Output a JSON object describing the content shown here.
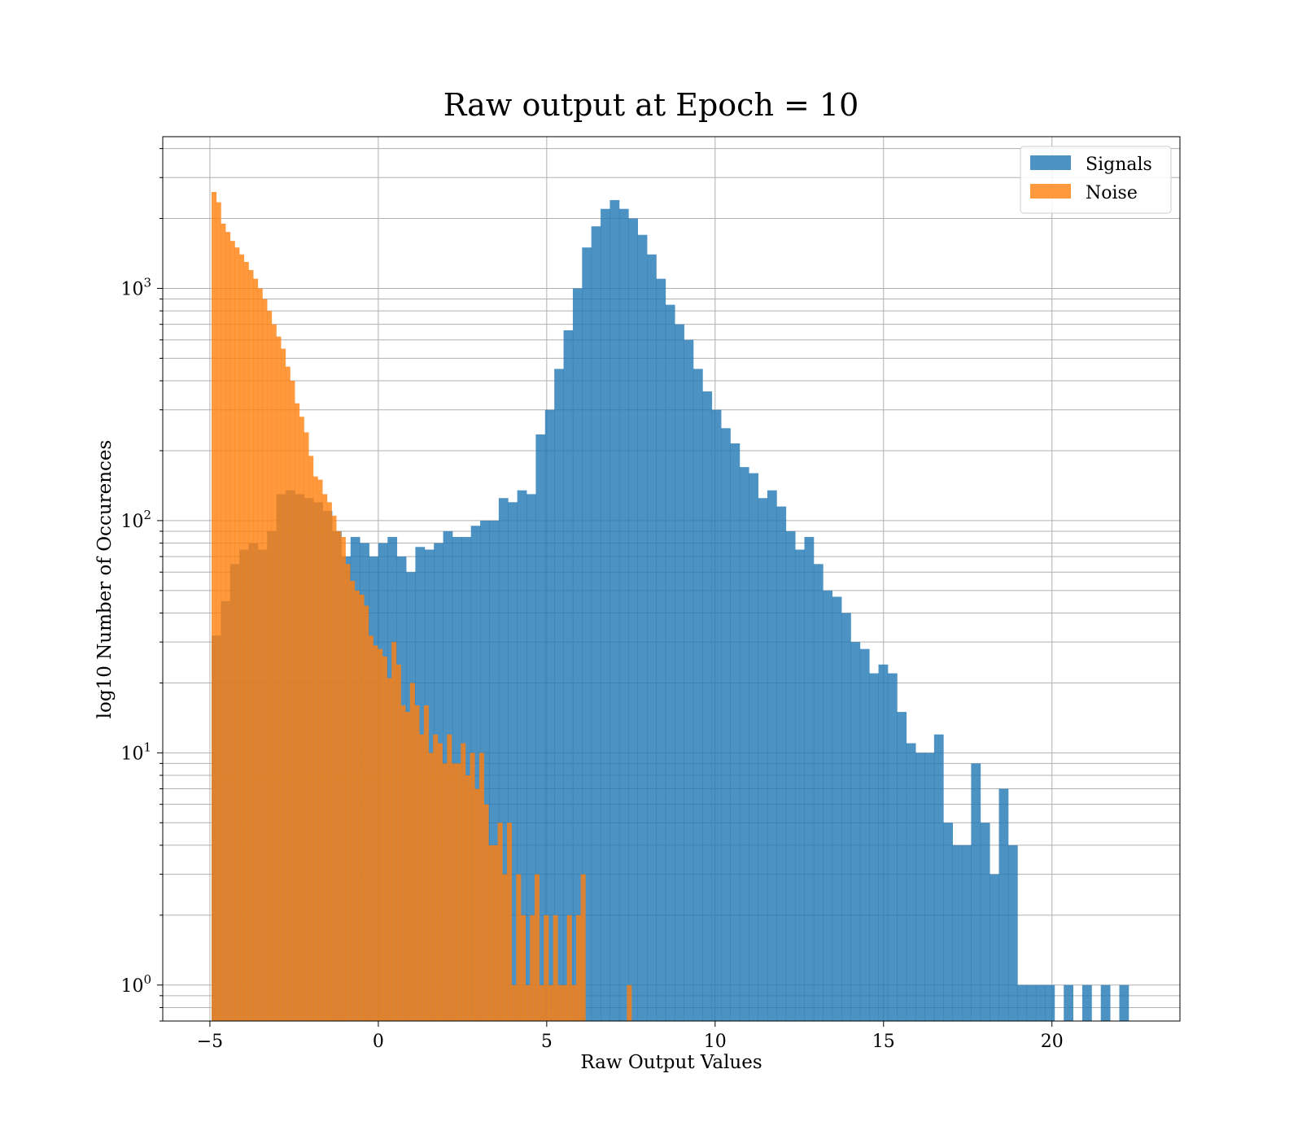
{
  "chart_data": {
    "type": "bar",
    "title": "Raw output at Epoch = 10",
    "xlabel": "Raw Output Values",
    "ylabel": "log10 Number of Occurences",
    "xlim": [
      -6.4,
      23.8
    ],
    "ylim": [
      0.7,
      4500
    ],
    "y_scale": "log",
    "grid": true,
    "legend_position": "top-right",
    "x_ticks": [
      {
        "value": -5,
        "label": "−5"
      },
      {
        "value": 0,
        "label": "0"
      },
      {
        "value": 5,
        "label": "5"
      },
      {
        "value": 10,
        "label": "10"
      },
      {
        "value": 15,
        "label": "15"
      },
      {
        "value": 20,
        "label": "20"
      }
    ],
    "y_ticks": [
      {
        "value": 1,
        "base": "10",
        "exp": "0"
      },
      {
        "value": 10,
        "base": "10",
        "exp": "1"
      },
      {
        "value": 100,
        "base": "10",
        "exp": "2"
      },
      {
        "value": 1000,
        "base": "10",
        "exp": "3"
      }
    ],
    "series": [
      {
        "name": "Signals",
        "color": "#1f77b4",
        "opacity": 0.8,
        "bin_start": -4.95,
        "bin_width": 0.275,
        "counts": [
          32,
          45,
          65,
          75,
          80,
          75,
          90,
          130,
          135,
          130,
          125,
          120,
          110,
          90,
          70,
          85,
          80,
          70,
          80,
          85,
          70,
          60,
          77,
          75,
          80,
          90,
          85,
          85,
          95,
          100,
          100,
          125,
          120,
          135,
          130,
          235,
          300,
          450,
          660,
          1000,
          1500,
          1850,
          2200,
          2400,
          2200,
          2000,
          1700,
          1400,
          1100,
          850,
          700,
          600,
          450,
          360,
          300,
          250,
          215,
          170,
          160,
          125,
          135,
          115,
          90,
          75,
          85,
          65,
          50,
          47,
          40,
          30,
          28,
          22,
          24,
          22,
          15,
          11,
          10,
          10,
          12,
          5,
          4,
          4,
          9,
          5,
          3,
          7,
          4,
          1,
          1,
          1,
          1,
          0,
          1,
          0,
          1,
          0,
          1,
          0,
          1
        ]
      },
      {
        "name": "Noise",
        "color": "#ff7f0e",
        "opacity": 0.8,
        "bin_start": -4.95,
        "bin_width": 0.137,
        "counts": [
          2600,
          2350,
          1900,
          1750,
          1600,
          1500,
          1400,
          1300,
          1200,
          1100,
          1000,
          900,
          800,
          700,
          620,
          550,
          460,
          400,
          320,
          280,
          240,
          190,
          155,
          150,
          130,
          120,
          105,
          90,
          85,
          65,
          55,
          50,
          48,
          43,
          32,
          29,
          28,
          26,
          21,
          30,
          24,
          16,
          15,
          20,
          16,
          12,
          16,
          10,
          12,
          11,
          9,
          12,
          9,
          9,
          11,
          8,
          10,
          7,
          10,
          6,
          4,
          4,
          5,
          3,
          5,
          1,
          3,
          2,
          1,
          2,
          3,
          1,
          2,
          1,
          2,
          1,
          1,
          2,
          1,
          2,
          3,
          0.7,
          0.7,
          0.7,
          0.7,
          0.7,
          0.7,
          0.7,
          0.7,
          0.7,
          1
        ]
      }
    ]
  }
}
